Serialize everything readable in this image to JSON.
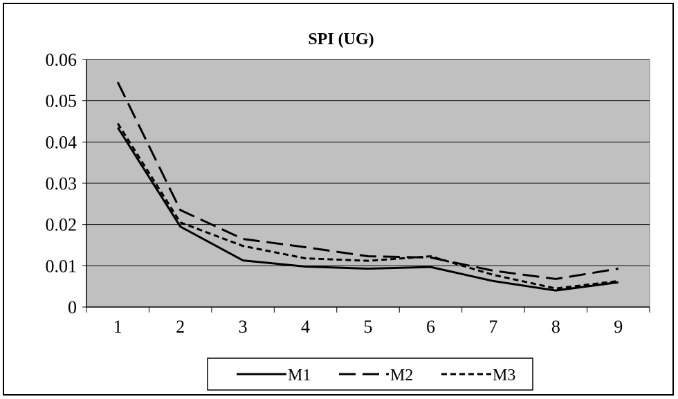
{
  "chart_data": {
    "type": "line",
    "title": "SPI (UG)",
    "xlabel": "",
    "ylabel": "",
    "categories": [
      "1",
      "2",
      "3",
      "4",
      "5",
      "6",
      "7",
      "8",
      "9"
    ],
    "ylim": [
      0,
      0.06
    ],
    "yticks": [
      "0.06",
      "0.05",
      "0.04",
      "0.03",
      "0.02",
      "0.01",
      "0"
    ],
    "ytick_values": [
      0.06,
      0.05,
      0.04,
      0.03,
      0.02,
      0.01,
      0
    ],
    "grid": true,
    "plot_background": "#c0c0c0",
    "legend_position": "bottom",
    "series": [
      {
        "name": "M1",
        "style": "solid",
        "values": [
          0.0435,
          0.0195,
          0.0113,
          0.0098,
          0.0093,
          0.0097,
          0.0063,
          0.004,
          0.006
        ]
      },
      {
        "name": "M2",
        "style": "long-dash",
        "values": [
          0.0545,
          0.0235,
          0.0165,
          0.0145,
          0.0123,
          0.012,
          0.0088,
          0.0068,
          0.0093
        ]
      },
      {
        "name": "M3",
        "style": "short-dash",
        "values": [
          0.0445,
          0.0205,
          0.0148,
          0.0118,
          0.0112,
          0.0123,
          0.0078,
          0.0045,
          0.0063
        ]
      }
    ]
  }
}
